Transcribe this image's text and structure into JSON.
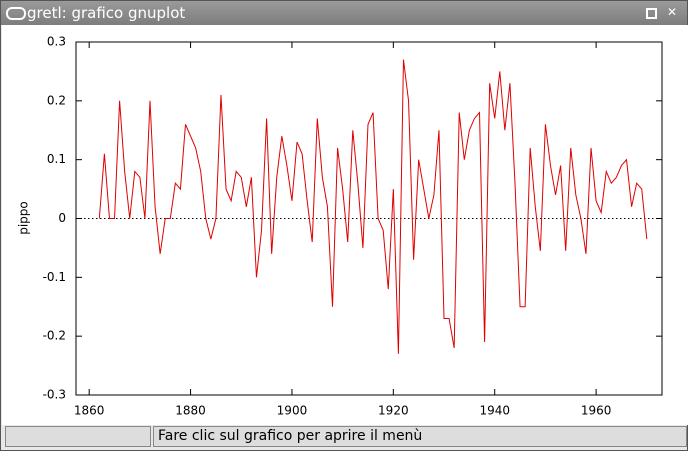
{
  "window": {
    "title": "gretl: grafico gnuplot"
  },
  "status_bar": {
    "message": "Fare clic sul grafico per aprire il menù"
  },
  "chart_data": {
    "type": "line",
    "y_label": "pippo",
    "color": "#e00000",
    "zero_line": 0,
    "x": [
      1862,
      1863,
      1864,
      1865,
      1866,
      1867,
      1868,
      1869,
      1870,
      1871,
      1872,
      1873,
      1874,
      1875,
      1876,
      1877,
      1878,
      1879,
      1880,
      1881,
      1882,
      1883,
      1884,
      1885,
      1886,
      1887,
      1888,
      1889,
      1890,
      1891,
      1892,
      1893,
      1894,
      1895,
      1896,
      1897,
      1898,
      1899,
      1900,
      1901,
      1902,
      1903,
      1904,
      1905,
      1906,
      1907,
      1908,
      1909,
      1910,
      1911,
      1912,
      1913,
      1914,
      1915,
      1916,
      1917,
      1918,
      1919,
      1920,
      1921,
      1922,
      1923,
      1924,
      1925,
      1926,
      1927,
      1928,
      1929,
      1930,
      1931,
      1932,
      1933,
      1934,
      1935,
      1936,
      1937,
      1938,
      1939,
      1940,
      1941,
      1942,
      1943,
      1944,
      1945,
      1946,
      1947,
      1948,
      1949,
      1950,
      1951,
      1952,
      1953,
      1954,
      1955,
      1956,
      1957,
      1958,
      1959,
      1960,
      1961,
      1962,
      1963,
      1964,
      1965,
      1966,
      1967,
      1968,
      1969,
      1970
    ],
    "values": [
      0,
      0.11,
      0,
      0,
      0.2,
      0.08,
      0,
      0.08,
      0.07,
      0,
      0.2,
      0.02,
      -0.06,
      0,
      0,
      0.06,
      0.05,
      0.16,
      0.14,
      0.12,
      0.08,
      0,
      -0.035,
      0,
      0.21,
      0.05,
      0.03,
      0.08,
      0.07,
      0.02,
      0.07,
      -0.1,
      -0.02,
      0.17,
      -0.06,
      0.07,
      0.14,
      0.09,
      0.03,
      0.13,
      0.11,
      0.03,
      -0.04,
      0.17,
      0.07,
      0.02,
      -0.15,
      0.12,
      0.05,
      -0.04,
      0.15,
      0.06,
      -0.05,
      0.16,
      0.18,
      0,
      -0.02,
      -0.12,
      0.05,
      -0.23,
      0.27,
      0.2,
      -0.07,
      0.1,
      0.05,
      0,
      0.04,
      0.15,
      -0.17,
      -0.17,
      -0.22,
      0.18,
      0.1,
      0.15,
      0.17,
      0.18,
      -0.21,
      0.23,
      0.17,
      0.25,
      0.15,
      0.23,
      0.06,
      -0.15,
      -0.15,
      0.12,
      0.02,
      -0.055,
      0.16,
      0.09,
      0.04,
      0.09,
      -0.055,
      0.12,
      0.04,
      0,
      -0.06,
      0.12,
      0.03,
      0.01,
      0.08,
      0.06,
      0.07,
      0.09,
      0.1,
      0.02,
      0.06,
      0.05,
      -0.035
    ],
    "xlim": [
      1857.4,
      1973
    ],
    "xticks": [
      1860,
      1880,
      1900,
      1920,
      1940,
      1960
    ],
    "ylim": [
      -0.3,
      0.3
    ],
    "yticks": [
      -0.3,
      -0.2,
      -0.1,
      0,
      0.1,
      0.2,
      0.3
    ]
  }
}
